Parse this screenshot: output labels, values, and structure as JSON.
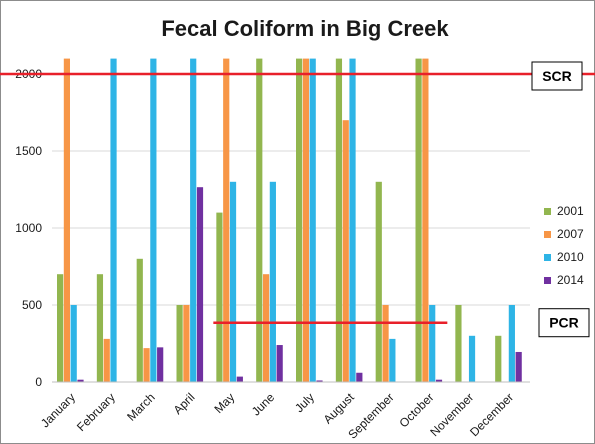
{
  "chart_data": {
    "type": "bar",
    "title": "Fecal Coliform in Big Creek",
    "xlabel": "",
    "ylabel": "",
    "ylim": [
      0,
      2100
    ],
    "yticks": [
      0,
      500,
      1000,
      1500,
      2000
    ],
    "grid": true,
    "legend_position": "right",
    "categories": [
      "January",
      "February",
      "March",
      "April",
      "May",
      "June",
      "July",
      "August",
      "September",
      "October",
      "November",
      "December"
    ],
    "series": [
      {
        "name": "2001",
        "color": "#92b64f",
        "values": [
          700,
          700,
          800,
          500,
          1100,
          2100,
          2100,
          2100,
          1300,
          2100,
          500,
          300
        ]
      },
      {
        "name": "2007",
        "color": "#f79646",
        "values": [
          2100,
          280,
          220,
          500,
          2100,
          700,
          2100,
          1700,
          500,
          2100,
          0,
          0
        ]
      },
      {
        "name": "2010",
        "color": "#2eb4e6",
        "values": [
          500,
          2100,
          2100,
          2100,
          1300,
          1300,
          2100,
          2100,
          280,
          500,
          300,
          500
        ]
      },
      {
        "name": "2014",
        "color": "#7030a0",
        "values": [
          15,
          0,
          225,
          1265,
          35,
          240,
          10,
          60,
          0,
          15,
          0,
          195
        ]
      }
    ],
    "reference_lines": [
      {
        "label": "SCR",
        "value": 2000,
        "color": "#e8202a",
        "from_category": "January",
        "to_category": "December"
      },
      {
        "label": "PCR",
        "value": 385,
        "color": "#e8202a",
        "from_category": "May",
        "to_category": "October"
      }
    ]
  }
}
